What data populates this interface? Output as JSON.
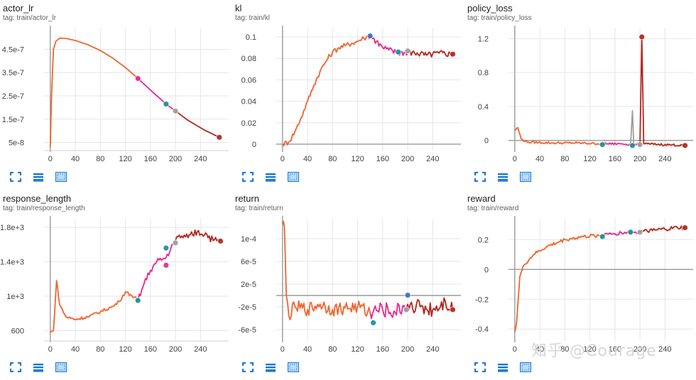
{
  "colors": {
    "orange": "#f0652f",
    "pink": "#e7298a",
    "darkred": "#b3261e",
    "teal": "#12939a",
    "blue": "#3b6fc4",
    "grey": "#9e9e9e",
    "grid": "#e6e6e6",
    "axis": "#9a9a9a"
  },
  "icons": [
    "fit-domain-icon",
    "toggle-log-scale-icon",
    "expand-chart-icon"
  ],
  "watermark": "知乎 @Courage",
  "chart_data": [
    {
      "id": "actor_lr",
      "type": "line",
      "title": "actor_lr",
      "tag": "tag: train/actor_lr",
      "xlim": [
        -10,
        285
      ],
      "ylim": [
        1.5e-08,
        5.4e-07
      ],
      "xticks": [
        0,
        40,
        80,
        120,
        160,
        200,
        240
      ],
      "xtick_labels": [
        "0",
        "40",
        "80",
        "120",
        "160",
        "200",
        "240"
      ],
      "yticks": [
        5e-08,
        1.5e-07,
        2.5e-07,
        3.5e-07,
        4.5e-07
      ],
      "ytick_labels": [
        "5e-8",
        "1.5e-7",
        "2.5e-7",
        "3.5e-7",
        "4.5e-7"
      ],
      "series": [
        {
          "color": "orange",
          "points": [
            [
              0,
              3e-08
            ],
            [
              2,
              2.5e-07
            ],
            [
              5,
              4.5e-07
            ],
            [
              9,
              4.85e-07
            ],
            [
              15,
              4.98e-07
            ],
            [
              25,
              4.97e-07
            ],
            [
              40,
              4.88e-07
            ],
            [
              60,
              4.7e-07
            ],
            [
              80,
              4.45e-07
            ],
            [
              100,
              4.12e-07
            ],
            [
              120,
              3.72e-07
            ],
            [
              140,
              3.25e-07
            ]
          ]
        },
        {
          "color": "pink",
          "points": [
            [
              140,
              3.25e-07
            ],
            [
              160,
              2.75e-07
            ],
            [
              185,
              2.15e-07
            ],
            [
              200,
              1.85e-07
            ]
          ]
        },
        {
          "color": "darkred",
          "points": [
            [
              200,
              1.85e-07
            ],
            [
              220,
              1.45e-07
            ],
            [
              245,
              1.05e-07
            ],
            [
              270,
              7.2e-08
            ]
          ]
        }
      ],
      "markers": [
        {
          "x": 140,
          "y": 3.25e-07,
          "color": "pink"
        },
        {
          "x": 185,
          "y": 2.15e-07,
          "color": "teal"
        },
        {
          "x": 200,
          "y": 1.85e-07,
          "color": "grey"
        },
        {
          "x": 270,
          "y": 7.2e-08,
          "color": "darkred"
        }
      ]
    },
    {
      "id": "kl",
      "type": "line",
      "title": "kl",
      "tag": "tag: train/kl",
      "xlim": [
        -10,
        285
      ],
      "ylim": [
        -0.006,
        0.108
      ],
      "xticks": [
        0,
        40,
        80,
        120,
        160,
        200,
        240
      ],
      "xtick_labels": [
        "0",
        "40",
        "80",
        "120",
        "160",
        "200",
        "240"
      ],
      "yticks": [
        0,
        0.02,
        0.04,
        0.06,
        0.08,
        0.1
      ],
      "ytick_labels": [
        "0",
        "0.02",
        "0.04",
        "0.06",
        "0.08",
        "0.1"
      ],
      "series": [
        {
          "color": "orange",
          "noise": 0.0025,
          "points": [
            [
              0,
              0
            ],
            [
              10,
              0.002
            ],
            [
              20,
              0.012
            ],
            [
              30,
              0.025
            ],
            [
              40,
              0.04
            ],
            [
              50,
              0.055
            ],
            [
              60,
              0.068
            ],
            [
              70,
              0.078
            ],
            [
              80,
              0.086
            ],
            [
              90,
              0.09
            ],
            [
              100,
              0.092
            ],
            [
              110,
              0.094
            ],
            [
              120,
              0.096
            ],
            [
              130,
              0.099
            ],
            [
              140,
              0.101
            ]
          ]
        },
        {
          "color": "pink",
          "noise": 0.003,
          "points": [
            [
              140,
              0.101
            ],
            [
              150,
              0.096
            ],
            [
              160,
              0.09
            ],
            [
              170,
              0.088
            ],
            [
              185,
              0.085
            ],
            [
              200,
              0.086
            ]
          ]
        },
        {
          "color": "darkred",
          "noise": 0.003,
          "points": [
            [
              200,
              0.086
            ],
            [
              215,
              0.085
            ],
            [
              230,
              0.083
            ],
            [
              250,
              0.085
            ],
            [
              272,
              0.084
            ]
          ]
        }
      ],
      "markers": [
        {
          "x": 140,
          "y": 0.101,
          "color": "blue"
        },
        {
          "x": 185,
          "y": 0.086,
          "color": "teal"
        },
        {
          "x": 200,
          "y": 0.087,
          "color": "grey"
        },
        {
          "x": 272,
          "y": 0.084,
          "color": "darkred"
        }
      ]
    },
    {
      "id": "policy_loss",
      "type": "line",
      "title": "policy_loss",
      "tag": "tag: train/policy_loss",
      "xlim": [
        -10,
        285
      ],
      "ylim": [
        -0.12,
        1.32
      ],
      "xticks": [
        0,
        40,
        80,
        120,
        160,
        200,
        240
      ],
      "xtick_labels": [
        "0",
        "40",
        "80",
        "120",
        "160",
        "200",
        "240"
      ],
      "yticks": [
        0,
        0.4,
        0.8,
        1.2
      ],
      "ytick_labels": [
        "0",
        "0.4",
        "0.8",
        "1.2"
      ],
      "series": [
        {
          "color": "grey",
          "points": [
            [
              185,
              -0.05
            ],
            [
              188,
              0.35
            ],
            [
              190,
              -0.05
            ]
          ]
        },
        {
          "color": "orange",
          "noise": 0.012,
          "points": [
            [
              0,
              0.12
            ],
            [
              5,
              0.15
            ],
            [
              10,
              0.02
            ],
            [
              20,
              -0.02
            ],
            [
              60,
              -0.03
            ],
            [
              100,
              -0.03
            ],
            [
              140,
              -0.04
            ]
          ]
        },
        {
          "color": "pink",
          "noise": 0.012,
          "points": [
            [
              140,
              -0.04
            ],
            [
              170,
              -0.04
            ],
            [
              190,
              -0.05
            ],
            [
              200,
              -0.05
            ]
          ]
        },
        {
          "color": "darkred",
          "noise": 0.012,
          "points": [
            [
              200,
              -0.05
            ],
            [
              203,
              1.22
            ],
            [
              206,
              -0.04
            ],
            [
              240,
              -0.05
            ],
            [
              272,
              -0.06
            ]
          ]
        }
      ],
      "markers": [
        {
          "x": 140,
          "y": -0.05,
          "color": "teal"
        },
        {
          "x": 188,
          "y": -0.06,
          "color": "teal"
        },
        {
          "x": 200,
          "y": -0.05,
          "color": "grey"
        },
        {
          "x": 203,
          "y": 1.22,
          "color": "darkred"
        },
        {
          "x": 272,
          "y": -0.06,
          "color": "darkred"
        }
      ]
    },
    {
      "id": "response_length",
      "type": "line",
      "title": "response_length",
      "tag": "tag: train/response_length",
      "xlim": [
        -10,
        285
      ],
      "ylim": [
        480,
        1900
      ],
      "xticks": [
        0,
        40,
        80,
        120,
        160,
        200,
        240
      ],
      "xtick_labels": [
        "0",
        "40",
        "80",
        "120",
        "160",
        "200",
        "240"
      ],
      "yticks": [
        600,
        1000,
        1400,
        1800
      ],
      "ytick_labels": [
        "600",
        "1e+3",
        "1.4e+3",
        "1.8e+3"
      ],
      "series": [
        {
          "color": "orange",
          "noise": 18,
          "points": [
            [
              0,
              580
            ],
            [
              5,
              600
            ],
            [
              10,
              1180
            ],
            [
              15,
              900
            ],
            [
              25,
              760
            ],
            [
              40,
              730
            ],
            [
              60,
              760
            ],
            [
              80,
              820
            ],
            [
              100,
              880
            ],
            [
              110,
              940
            ],
            [
              120,
              1050
            ],
            [
              130,
              1010
            ],
            [
              140,
              950
            ]
          ]
        },
        {
          "color": "pink",
          "noise": 35,
          "points": [
            [
              140,
              950
            ],
            [
              150,
              1150
            ],
            [
              160,
              1300
            ],
            [
              170,
              1400
            ],
            [
              185,
              1450
            ],
            [
              200,
              1650
            ]
          ]
        },
        {
          "color": "darkred",
          "noise": 45,
          "points": [
            [
              200,
              1650
            ],
            [
              210,
              1700
            ],
            [
              220,
              1680
            ],
            [
              235,
              1750
            ],
            [
              250,
              1720
            ],
            [
              260,
              1650
            ],
            [
              272,
              1640
            ]
          ]
        }
      ],
      "markers": [
        {
          "x": 140,
          "y": 950,
          "color": "teal"
        },
        {
          "x": 185,
          "y": 1360,
          "color": "pink"
        },
        {
          "x": 185,
          "y": 1560,
          "color": "teal"
        },
        {
          "x": 200,
          "y": 1620,
          "color": "grey"
        },
        {
          "x": 272,
          "y": 1640,
          "color": "darkred"
        }
      ]
    },
    {
      "id": "return",
      "type": "line",
      "title": "return",
      "tag": "tag: train/return",
      "xlim": [
        -10,
        285
      ],
      "ylim": [
        -8e-05,
        0.000135
      ],
      "xticks": [
        0,
        40,
        80,
        120,
        160,
        200,
        240
      ],
      "xtick_labels": [
        "0",
        "40",
        "80",
        "120",
        "160",
        "200",
        "240"
      ],
      "yticks": [
        -6e-05,
        -2e-05,
        2e-05,
        6e-05,
        0.0001
      ],
      "ytick_labels": [
        "-6e-5",
        "-2e-5",
        "2e-5",
        "6e-5",
        "1e-4"
      ],
      "series": [
        {
          "color": "orange",
          "noise": 1.2e-05,
          "points": [
            [
              0,
              0.000125
            ],
            [
              3,
              0.00012
            ],
            [
              6,
              0
            ],
            [
              10,
              -3.5e-05
            ],
            [
              20,
              -2e-05
            ],
            [
              40,
              -2.5e-05
            ],
            [
              60,
              -1.5e-05
            ],
            [
              80,
              -2.5e-05
            ],
            [
              100,
              -2.2e-05
            ],
            [
              120,
              -2e-05
            ],
            [
              140,
              -3e-05
            ]
          ]
        },
        {
          "color": "pink",
          "noise": 1.4e-05,
          "points": [
            [
              140,
              -3e-05
            ],
            [
              160,
              -2.5e-05
            ],
            [
              180,
              -3e-05
            ],
            [
              200,
              -1.5e-05
            ]
          ]
        },
        {
          "color": "darkred",
          "noise": 1.4e-05,
          "points": [
            [
              200,
              -1.5e-05
            ],
            [
              220,
              -2e-05
            ],
            [
              240,
              -2.5e-05
            ],
            [
              260,
              -1e-05
            ],
            [
              272,
              -2.5e-05
            ]
          ]
        }
      ],
      "markers": [
        {
          "x": 145,
          "y": -4.8e-05,
          "color": "teal"
        },
        {
          "x": 200,
          "y": 5e-07,
          "color": "blue"
        },
        {
          "x": 198,
          "y": -2.5e-05,
          "color": "grey"
        },
        {
          "x": 272,
          "y": -2.5e-05,
          "color": "darkred"
        }
      ]
    },
    {
      "id": "reward",
      "type": "line",
      "title": "reward",
      "tag": "tag: train/reward",
      "xlim": [
        -10,
        285
      ],
      "ylim": [
        -0.48,
        0.34
      ],
      "xticks": [
        0,
        40,
        80,
        120,
        160,
        200,
        240
      ],
      "xtick_labels": [
        "0",
        "40",
        "80",
        "120",
        "160",
        "200",
        "240"
      ],
      "yticks": [
        -0.4,
        -0.2,
        0,
        0.2
      ],
      "ytick_labels": [
        "-0.4",
        "-0.2",
        "0",
        "0.2"
      ],
      "series": [
        {
          "color": "orange",
          "noise": 0.012,
          "points": [
            [
              0,
              -0.42
            ],
            [
              3,
              -0.35
            ],
            [
              8,
              -0.05
            ],
            [
              15,
              0.03
            ],
            [
              30,
              0.1
            ],
            [
              50,
              0.15
            ],
            [
              80,
              0.2
            ],
            [
              110,
              0.22
            ],
            [
              140,
              0.23
            ]
          ]
        },
        {
          "color": "pink",
          "noise": 0.012,
          "points": [
            [
              140,
              0.23
            ],
            [
              160,
              0.24
            ],
            [
              180,
              0.25
            ],
            [
              200,
              0.25
            ]
          ]
        },
        {
          "color": "darkred",
          "noise": 0.014,
          "points": [
            [
              200,
              0.25
            ],
            [
              220,
              0.26
            ],
            [
              240,
              0.27
            ],
            [
              260,
              0.28
            ],
            [
              272,
              0.28
            ]
          ]
        }
      ],
      "markers": [
        {
          "x": 140,
          "y": 0.22,
          "color": "teal"
        },
        {
          "x": 185,
          "y": 0.25,
          "color": "teal"
        },
        {
          "x": 200,
          "y": 0.25,
          "color": "grey"
        },
        {
          "x": 272,
          "y": 0.28,
          "color": "darkred"
        }
      ]
    }
  ]
}
